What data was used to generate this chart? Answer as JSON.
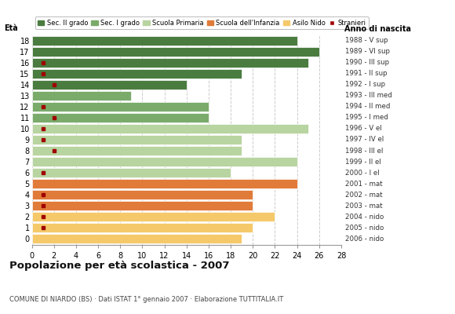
{
  "ages": [
    18,
    17,
    16,
    15,
    14,
    13,
    12,
    11,
    10,
    9,
    8,
    7,
    6,
    5,
    4,
    3,
    2,
    1,
    0
  ],
  "years": [
    "1988 - V sup",
    "1989 - VI sup",
    "1990 - III sup",
    "1991 - II sup",
    "1992 - I sup",
    "1993 - III med",
    "1994 - II med",
    "1995 - I med",
    "1996 - V el",
    "1997 - IV el",
    "1998 - III el",
    "1999 - II el",
    "2000 - I el",
    "2001 - mat",
    "2002 - mat",
    "2003 - mat",
    "2004 - nido",
    "2005 - nido",
    "2006 - nido"
  ],
  "bar_values": [
    24,
    26,
    25,
    19,
    14,
    9,
    16,
    16,
    25,
    19,
    19,
    24,
    18,
    24,
    20,
    20,
    22,
    20,
    19
  ],
  "stranieri": [
    0,
    0,
    1,
    1,
    2,
    0,
    1,
    2,
    1,
    1,
    2,
    0,
    1,
    0,
    1,
    1,
    1,
    1,
    0
  ],
  "categories": [
    "Sec. II grado",
    "Sec. I grado",
    "Scuola Primaria",
    "Scuola dell'Infanzia",
    "Asilo Nido"
  ],
  "bar_colors": [
    "#4a7c3f",
    "#7aab6a",
    "#b8d4a0",
    "#e07b39",
    "#f5c96a"
  ],
  "stranieri_color": "#a00000",
  "title": "Popolazione per età scolastica - 2007",
  "subtitle": "COMUNE DI NIARDO (BS) · Dati ISTAT 1° gennaio 2007 · Elaborazione TUTTITALIA.IT",
  "ylabel": "Età",
  "ylabel2": "Anno di nascita",
  "xlim": [
    0,
    28
  ],
  "xticks": [
    0,
    2,
    4,
    6,
    8,
    10,
    12,
    14,
    16,
    18,
    20,
    22,
    24,
    26,
    28
  ],
  "age_categories": {
    "18": 0,
    "17": 0,
    "16": 0,
    "15": 0,
    "14": 0,
    "13": 1,
    "12": 1,
    "11": 1,
    "10": 2,
    "9": 2,
    "8": 2,
    "7": 2,
    "6": 2,
    "5": 3,
    "4": 3,
    "3": 3,
    "2": 4,
    "1": 4,
    "0": 4
  },
  "bg_color": "#ffffff",
  "grid_color": "#cccccc",
  "legend_border_color": "#aaaaaa"
}
